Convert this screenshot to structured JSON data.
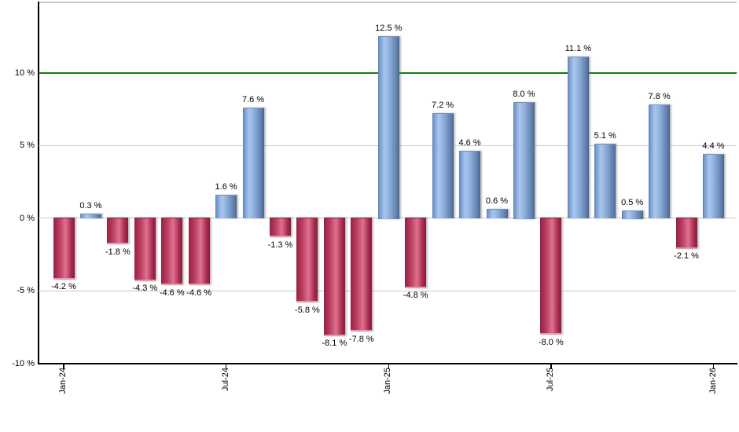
{
  "chart_data": {
    "type": "bar",
    "title": "",
    "description": "Monthly percentage returns bar chart, blue bars positive and red bars negative",
    "values": [
      -4.2,
      0.3,
      -1.8,
      -4.3,
      -4.6,
      -4.6,
      1.6,
      7.6,
      -1.3,
      -5.8,
      -8.1,
      -7.8,
      12.5,
      -4.8,
      7.2,
      4.6,
      0.6,
      8.0,
      -8.0,
      11.1,
      5.1,
      0.5,
      7.8,
      -2.1,
      4.4
    ],
    "bar_labels": [
      "-4.2 %",
      "0.3 %",
      "-1.8 %",
      "-4.3 %",
      "-4.6 %",
      "-4.6 %",
      "1.6 %",
      "7.6 %",
      "-1.3 %",
      "-5.8 %",
      "-8.1 %",
      "-7.8 %",
      "12.5 %",
      "-4.8 %",
      "7.2 %",
      "4.6 %",
      "0.6 %",
      "8.0 %",
      "-8.0 %",
      "11.1 %",
      "5.1 %",
      "0.5 %",
      "7.8 %",
      "-2.1 %",
      "4.4 %"
    ],
    "x_axis": {
      "tick_labels": [
        "Jan-24",
        "Jul-24",
        "Jan-25",
        "Jul-25",
        "Jan-26"
      ],
      "tick_bar_indices": [
        0,
        6,
        12,
        18,
        24
      ]
    },
    "y_axis": {
      "tick_labels": [
        "10 %",
        "5 %",
        "0 %",
        "-5 %",
        "-10 %"
      ],
      "tick_values": [
        10,
        5,
        0,
        -5,
        -10
      ]
    },
    "ylim": [
      -10,
      14.8
    ],
    "grid": true,
    "legend": null,
    "threshold_line": {
      "value": 10,
      "color": "#0f7d0f"
    },
    "colors": {
      "positive_bar_edge": "#54719f",
      "positive_bar_light": "#a9c6ef",
      "negative_bar_edge": "#8b1b3a",
      "negative_bar_light": "#e0718f",
      "gridline": "#c9c9c9",
      "axis": "#000000",
      "text": "#000000",
      "background": "#ffffff"
    }
  }
}
